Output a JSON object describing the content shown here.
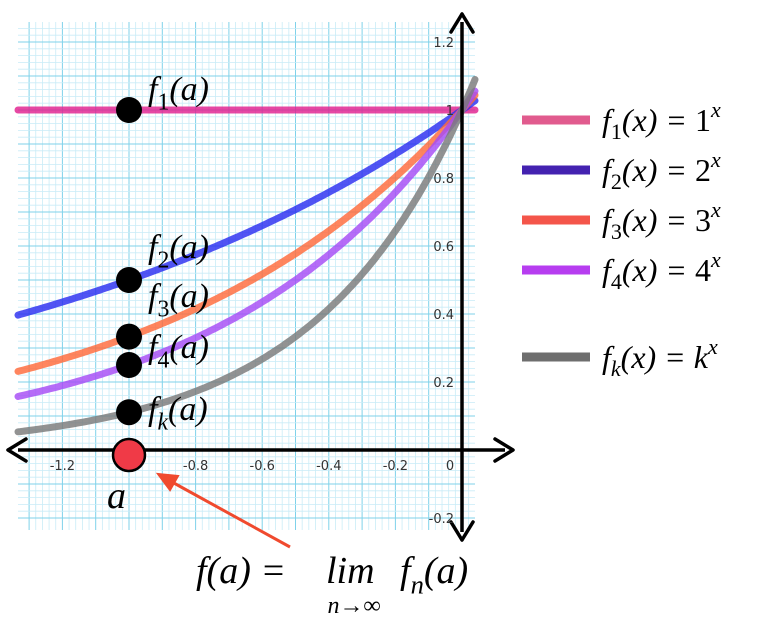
{
  "chart_data": {
    "type": "line",
    "xlim": [
      -1.3,
      0.05
    ],
    "ylim": [
      -0.24,
      1.25
    ],
    "x_ticks": [
      -1.2,
      -0.8,
      -0.6,
      -0.4,
      -0.2,
      0
    ],
    "x_tick_labels": [
      "-1.2",
      "-0.8",
      "-0.6",
      "-0.4",
      "-0.2",
      "0"
    ],
    "y_ticks": [
      1.2,
      1,
      0.8,
      0.6,
      0.4,
      0.2,
      -0.2
    ],
    "y_tick_labels": [
      "1.2",
      "1",
      "0.8",
      "0.6",
      "0.4",
      "0.2",
      "-0.2"
    ],
    "grid": true,
    "legend_placement": "right",
    "series": [
      {
        "key": "f1",
        "base": 1,
        "color": "#e0208f",
        "legend_color": "#e15b8e",
        "legend": {
          "f": "f",
          "sub": "1",
          "rhs": "1",
          "sup": "x"
        }
      },
      {
        "key": "f2",
        "base": 2,
        "color": "#2b2ef0",
        "legend_color": "#4322b0",
        "legend": {
          "f": "f",
          "sub": "2",
          "rhs": "2",
          "sup": "x"
        }
      },
      {
        "key": "f3",
        "base": 3,
        "color": "#ff6a3a",
        "legend_color": "#f4554a",
        "legend": {
          "f": "f",
          "sub": "3",
          "rhs": "3",
          "sup": "x"
        }
      },
      {
        "key": "f4",
        "base": 4,
        "color": "#a64cf5",
        "legend_color": "#b73df0",
        "legend": {
          "f": "f",
          "sub": "4",
          "rhs": "4",
          "sup": "x"
        }
      },
      {
        "key": "fk",
        "base": 9,
        "color": "#7a7a7a",
        "legend_color": "#6e6e6e",
        "legend": {
          "f": "f",
          "sub": "k",
          "rhs": "k",
          "sup": "x"
        }
      }
    ],
    "point_a": -1,
    "point_labels": [
      {
        "key": "f1",
        "f": "f",
        "sub": "1",
        "arg": "(a)"
      },
      {
        "key": "f2",
        "f": "f",
        "sub": "2",
        "arg": "(a)"
      },
      {
        "key": "f3",
        "f": "f",
        "sub": "3",
        "arg": "(a)"
      },
      {
        "key": "f4",
        "f": "f",
        "sub": "4",
        "arg": "(a)"
      },
      {
        "key": "fk",
        "f": "f",
        "sub": "k",
        "arg": "(a)"
      }
    ],
    "a_label": "a",
    "limit_annotation": {
      "lhs": "f(a) = ",
      "op": "lim",
      "sub": "n→∞",
      "rhs_f": "f",
      "rhs_sub": "n",
      "rhs_arg": "(a)"
    },
    "colors": {
      "grid_major": "#7fd2ea",
      "grid_minor": "#c9ecf7",
      "axis": "#000000",
      "marker": "#000000",
      "a_marker": "#f03a47",
      "arrow": "#f04a2e"
    }
  }
}
